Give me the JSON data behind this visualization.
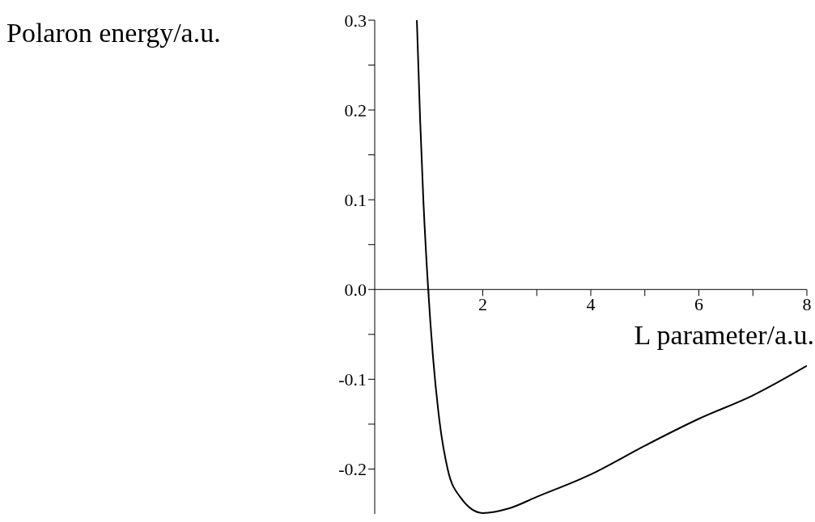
{
  "chart_data": {
    "type": "line",
    "xlabel": "L parameter/a.u.",
    "ylabel": "Polaron energy/a.u.",
    "xlim": [
      0,
      8
    ],
    "ylim": [
      -0.25,
      0.3
    ],
    "xticks": [
      {
        "value": 1,
        "label": null
      },
      2,
      {
        "value": 3,
        "label": null
      },
      4,
      {
        "value": 5,
        "label": null
      },
      6,
      {
        "value": 7,
        "label": null
      },
      8
    ],
    "yticks": [
      -0.2,
      {
        "value": -0.15,
        "label": null
      },
      -0.1,
      {
        "value": -0.05,
        "label": null
      },
      {
        "value": 0,
        "label": "0.0"
      },
      {
        "value": 0.05,
        "label": null
      },
      0.1,
      {
        "value": 0.15,
        "label": null
      },
      0.2,
      {
        "value": 0.25,
        "label": null
      },
      0.3
    ],
    "series": [
      {
        "color": "#000000",
        "x": [
          0.78,
          0.84,
          0.9,
          0.99,
          1.08,
          1.2,
          1.35,
          1.58,
          2.0,
          2.48,
          3.0,
          4.0,
          5.0,
          6.0,
          7.0,
          8.0
        ],
        "values": [
          0.3,
          0.19,
          0.1,
          0,
          -0.076,
          -0.147,
          -0.2,
          -0.231,
          -0.249,
          -0.244,
          -0.231,
          -0.206,
          -0.174,
          -0.144,
          -0.118,
          -0.085
        ]
      }
    ]
  }
}
